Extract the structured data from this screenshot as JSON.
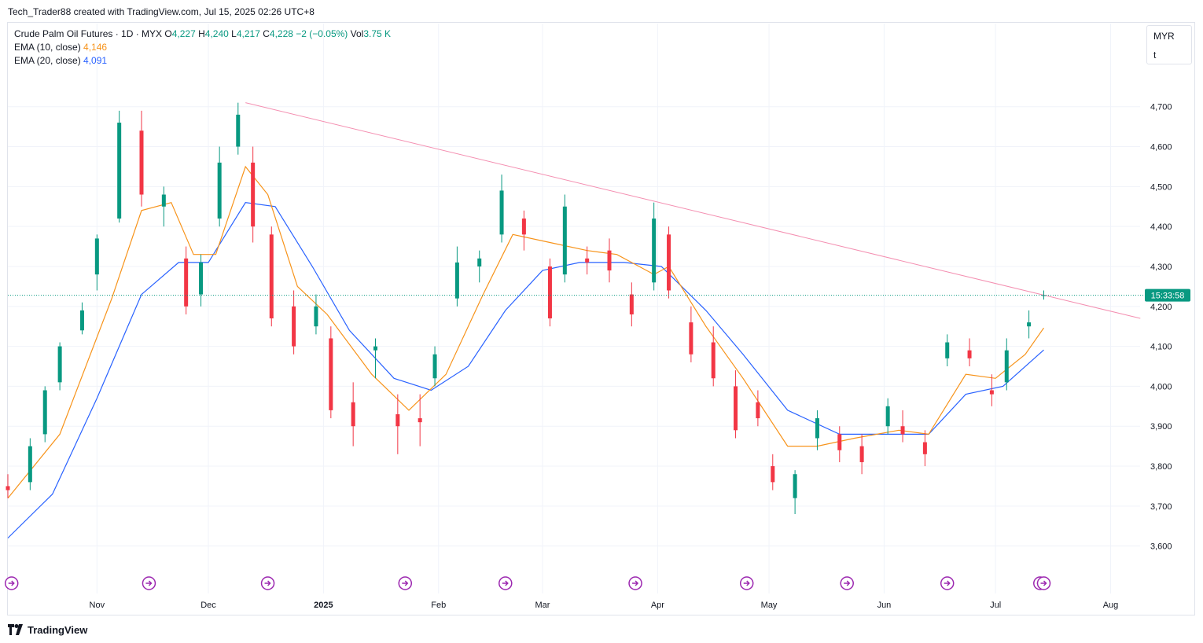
{
  "header": {
    "attribution": "Tech_Trader88 created with TradingView.com, Jul 15, 2025 02:26 UTC+8"
  },
  "legend": {
    "symbol": "Crude Palm Oil Futures · 1D · MYX",
    "o_label": "O",
    "o_value": "4,227",
    "h_label": "H",
    "h_value": "4,240",
    "l_label": "L",
    "l_value": "4,217",
    "c_label": "C",
    "c_value": "4,228",
    "change": "−2 (−0.05%)",
    "vol_label": "Vol",
    "vol_value": "3.75 K",
    "ema10_label": "EMA (10, close)",
    "ema10_value": "4,146",
    "ema20_label": "EMA (20, close)",
    "ema20_value": "4,091"
  },
  "unit_box": {
    "currency": "MYR",
    "unit": "t"
  },
  "price_tag": "15:33:58",
  "footer": {
    "brand": "TradingView"
  },
  "colors": {
    "up": "#089981",
    "down": "#f23645",
    "ema10": "#f7931a",
    "ema20": "#2962ff",
    "trendline": "#f48fb1",
    "event_icon": "#9c27b0"
  },
  "icons": [
    "dividend-arrow-icon",
    "tradingview-logo-icon"
  ],
  "chart_data": {
    "type": "candlestick",
    "title": "Crude Palm Oil Futures · 1D · MYX",
    "ylim": [
      3560,
      4790
    ],
    "yticks": [
      "4,700",
      "4,600",
      "4,500",
      "4,400",
      "4,300",
      "4,200",
      "4,100",
      "4,000",
      "3,900",
      "3,800",
      "3,700",
      "3,600"
    ],
    "ytick_values": [
      4700,
      4600,
      4500,
      4400,
      4300,
      4200,
      4100,
      4000,
      3900,
      3800,
      3700,
      3600
    ],
    "xticks": [
      "Nov",
      "Dec",
      "2025",
      "Feb",
      "Mar",
      "Apr",
      "May",
      "Jun",
      "Jul",
      "Aug"
    ],
    "xtick_dates": [
      "2024-11-01",
      "2024-12-01",
      "2025-01-01",
      "2025-02-01",
      "2025-03-01",
      "2025-04-01",
      "2025-05-01",
      "2025-06-01",
      "2025-07-01",
      "2025-08-01"
    ],
    "xrange": [
      "2024-10-08",
      "2025-08-10"
    ],
    "last_close": 4228,
    "ohlc_sampled": [
      {
        "date": "2024-10-08",
        "open": 3750,
        "high": 3780,
        "low": 3720,
        "close": 3740
      },
      {
        "date": "2024-10-14",
        "open": 3760,
        "high": 3870,
        "low": 3740,
        "close": 3850
      },
      {
        "date": "2024-10-18",
        "open": 3880,
        "high": 4000,
        "low": 3860,
        "close": 3990
      },
      {
        "date": "2024-10-22",
        "open": 4010,
        "high": 4110,
        "low": 3990,
        "close": 4100
      },
      {
        "date": "2024-10-28",
        "open": 4140,
        "high": 4210,
        "low": 4130,
        "close": 4190
      },
      {
        "date": "2024-11-01",
        "open": 4280,
        "high": 4380,
        "low": 4240,
        "close": 4370
      },
      {
        "date": "2024-11-07",
        "open": 4420,
        "high": 4690,
        "low": 4410,
        "close": 4660
      },
      {
        "date": "2024-11-13",
        "open": 4640,
        "high": 4690,
        "low": 4450,
        "close": 4480
      },
      {
        "date": "2024-11-19",
        "open": 4450,
        "high": 4500,
        "low": 4400,
        "close": 4480
      },
      {
        "date": "2024-11-25",
        "open": 4320,
        "high": 4350,
        "low": 4180,
        "close": 4200
      },
      {
        "date": "2024-11-29",
        "open": 4230,
        "high": 4330,
        "low": 4200,
        "close": 4310
      },
      {
        "date": "2024-12-04",
        "open": 4420,
        "high": 4600,
        "low": 4400,
        "close": 4560
      },
      {
        "date": "2024-12-09",
        "open": 4600,
        "high": 4710,
        "low": 4580,
        "close": 4680
      },
      {
        "date": "2024-12-13",
        "open": 4560,
        "high": 4600,
        "low": 4360,
        "close": 4400
      },
      {
        "date": "2024-12-18",
        "open": 4380,
        "high": 4400,
        "low": 4150,
        "close": 4170
      },
      {
        "date": "2024-12-24",
        "open": 4200,
        "high": 4240,
        "low": 4080,
        "close": 4100
      },
      {
        "date": "2024-12-30",
        "open": 4150,
        "high": 4230,
        "low": 4130,
        "close": 4200
      },
      {
        "date": "2025-01-03",
        "open": 4120,
        "high": 4150,
        "low": 3920,
        "close": 3940
      },
      {
        "date": "2025-01-09",
        "open": 3960,
        "high": 4010,
        "low": 3850,
        "close": 3900
      },
      {
        "date": "2025-01-15",
        "open": 4090,
        "high": 4120,
        "low": 4020,
        "close": 4100
      },
      {
        "date": "2025-01-21",
        "open": 3930,
        "high": 3980,
        "low": 3830,
        "close": 3900
      },
      {
        "date": "2025-01-27",
        "open": 3920,
        "high": 3980,
        "low": 3850,
        "close": 3910
      },
      {
        "date": "2025-01-31",
        "open": 4020,
        "high": 4100,
        "low": 4000,
        "close": 4080
      },
      {
        "date": "2025-02-06",
        "open": 4220,
        "high": 4350,
        "low": 4200,
        "close": 4310
      },
      {
        "date": "2025-02-12",
        "open": 4300,
        "high": 4340,
        "low": 4260,
        "close": 4320
      },
      {
        "date": "2025-02-18",
        "open": 4380,
        "high": 4530,
        "low": 4360,
        "close": 4490
      },
      {
        "date": "2025-02-24",
        "open": 4420,
        "high": 4440,
        "low": 4340,
        "close": 4380
      },
      {
        "date": "2025-03-03",
        "open": 4300,
        "high": 4320,
        "low": 4150,
        "close": 4170
      },
      {
        "date": "2025-03-07",
        "open": 4280,
        "high": 4480,
        "low": 4260,
        "close": 4450
      },
      {
        "date": "2025-03-13",
        "open": 4320,
        "high": 4350,
        "low": 4280,
        "close": 4310
      },
      {
        "date": "2025-03-19",
        "open": 4340,
        "high": 4370,
        "low": 4260,
        "close": 4290
      },
      {
        "date": "2025-03-25",
        "open": 4230,
        "high": 4260,
        "low": 4150,
        "close": 4180
      },
      {
        "date": "2025-03-31",
        "open": 4260,
        "high": 4460,
        "low": 4240,
        "close": 4420
      },
      {
        "date": "2025-04-04",
        "open": 4380,
        "high": 4400,
        "low": 4220,
        "close": 4240
      },
      {
        "date": "2025-04-10",
        "open": 4160,
        "high": 4200,
        "low": 4060,
        "close": 4080
      },
      {
        "date": "2025-04-16",
        "open": 4110,
        "high": 4150,
        "low": 4000,
        "close": 4020
      },
      {
        "date": "2025-04-22",
        "open": 4000,
        "high": 4040,
        "low": 3870,
        "close": 3890
      },
      {
        "date": "2025-04-28",
        "open": 3960,
        "high": 3990,
        "low": 3900,
        "close": 3920
      },
      {
        "date": "2025-05-02",
        "open": 3800,
        "high": 3830,
        "low": 3740,
        "close": 3760
      },
      {
        "date": "2025-05-08",
        "open": 3720,
        "high": 3790,
        "low": 3680,
        "close": 3780
      },
      {
        "date": "2025-05-14",
        "open": 3870,
        "high": 3940,
        "low": 3840,
        "close": 3920
      },
      {
        "date": "2025-05-20",
        "open": 3880,
        "high": 3900,
        "low": 3810,
        "close": 3840
      },
      {
        "date": "2025-05-26",
        "open": 3850,
        "high": 3880,
        "low": 3780,
        "close": 3810
      },
      {
        "date": "2025-06-02",
        "open": 3900,
        "high": 3970,
        "low": 3880,
        "close": 3950
      },
      {
        "date": "2025-06-06",
        "open": 3900,
        "high": 3940,
        "low": 3860,
        "close": 3880
      },
      {
        "date": "2025-06-12",
        "open": 3860,
        "high": 3890,
        "low": 3800,
        "close": 3830
      },
      {
        "date": "2025-06-18",
        "open": 4070,
        "high": 4130,
        "low": 4050,
        "close": 4110
      },
      {
        "date": "2025-06-24",
        "open": 4090,
        "high": 4120,
        "low": 4050,
        "close": 4070
      },
      {
        "date": "2025-06-30",
        "open": 3990,
        "high": 4030,
        "low": 3950,
        "close": 3980
      },
      {
        "date": "2025-07-04",
        "open": 4010,
        "high": 4120,
        "low": 3990,
        "close": 4090
      },
      {
        "date": "2025-07-10",
        "open": 4150,
        "high": 4190,
        "low": 4120,
        "close": 4160
      },
      {
        "date": "2025-07-14",
        "open": 4227,
        "high": 4240,
        "low": 4217,
        "close": 4228
      }
    ],
    "ema10_sampled": [
      {
        "date": "2024-10-08",
        "value": 3720
      },
      {
        "date": "2024-10-22",
        "value": 3880
      },
      {
        "date": "2024-11-05",
        "value": 4220
      },
      {
        "date": "2024-11-13",
        "value": 4440
      },
      {
        "date": "2024-11-21",
        "value": 4460
      },
      {
        "date": "2024-11-27",
        "value": 4330
      },
      {
        "date": "2024-12-03",
        "value": 4330
      },
      {
        "date": "2024-12-11",
        "value": 4550
      },
      {
        "date": "2024-12-17",
        "value": 4480
      },
      {
        "date": "2024-12-25",
        "value": 4250
      },
      {
        "date": "2025-01-02",
        "value": 4180
      },
      {
        "date": "2025-01-14",
        "value": 4030
      },
      {
        "date": "2025-01-24",
        "value": 3940
      },
      {
        "date": "2025-02-03",
        "value": 4030
      },
      {
        "date": "2025-02-13",
        "value": 4230
      },
      {
        "date": "2025-02-21",
        "value": 4380
      },
      {
        "date": "2025-03-03",
        "value": 4360
      },
      {
        "date": "2025-03-13",
        "value": 4340
      },
      {
        "date": "2025-03-21",
        "value": 4330
      },
      {
        "date": "2025-03-31",
        "value": 4280
      },
      {
        "date": "2025-04-04",
        "value": 4300
      },
      {
        "date": "2025-04-14",
        "value": 4150
      },
      {
        "date": "2025-04-24",
        "value": 4020
      },
      {
        "date": "2025-05-06",
        "value": 3850
      },
      {
        "date": "2025-05-14",
        "value": 3850
      },
      {
        "date": "2025-05-24",
        "value": 3870
      },
      {
        "date": "2025-06-05",
        "value": 3890
      },
      {
        "date": "2025-06-13",
        "value": 3880
      },
      {
        "date": "2025-06-23",
        "value": 4030
      },
      {
        "date": "2025-07-01",
        "value": 4020
      },
      {
        "date": "2025-07-09",
        "value": 4080
      },
      {
        "date": "2025-07-14",
        "value": 4146
      }
    ],
    "ema20_sampled": [
      {
        "date": "2024-10-08",
        "value": 3620
      },
      {
        "date": "2024-10-20",
        "value": 3730
      },
      {
        "date": "2024-11-01",
        "value": 3970
      },
      {
        "date": "2024-11-13",
        "value": 4230
      },
      {
        "date": "2024-11-23",
        "value": 4310
      },
      {
        "date": "2024-12-01",
        "value": 4310
      },
      {
        "date": "2024-12-11",
        "value": 4460
      },
      {
        "date": "2024-12-19",
        "value": 4450
      },
      {
        "date": "2024-12-29",
        "value": 4300
      },
      {
        "date": "2025-01-08",
        "value": 4140
      },
      {
        "date": "2025-01-20",
        "value": 4020
      },
      {
        "date": "2025-01-30",
        "value": 3990
      },
      {
        "date": "2025-02-09",
        "value": 4050
      },
      {
        "date": "2025-02-19",
        "value": 4190
      },
      {
        "date": "2025-03-01",
        "value": 4290
      },
      {
        "date": "2025-03-11",
        "value": 4310
      },
      {
        "date": "2025-03-23",
        "value": 4310
      },
      {
        "date": "2025-04-02",
        "value": 4300
      },
      {
        "date": "2025-04-14",
        "value": 4190
      },
      {
        "date": "2025-04-24",
        "value": 4080
      },
      {
        "date": "2025-05-06",
        "value": 3940
      },
      {
        "date": "2025-05-20",
        "value": 3880
      },
      {
        "date": "2025-06-03",
        "value": 3880
      },
      {
        "date": "2025-06-13",
        "value": 3880
      },
      {
        "date": "2025-06-23",
        "value": 3980
      },
      {
        "date": "2025-07-03",
        "value": 4000
      },
      {
        "date": "2025-07-14",
        "value": 4091
      }
    ],
    "trendline": [
      {
        "date": "2024-12-11",
        "value": 4710
      },
      {
        "date": "2025-08-09",
        "value": 4170
      }
    ],
    "event_markers": [
      "2024-10-09",
      "2024-11-15",
      "2024-12-17",
      "2025-01-23",
      "2025-02-19",
      "2025-03-26",
      "2025-04-25",
      "2025-05-22",
      "2025-06-18",
      "2025-07-13",
      "2025-07-14"
    ]
  }
}
